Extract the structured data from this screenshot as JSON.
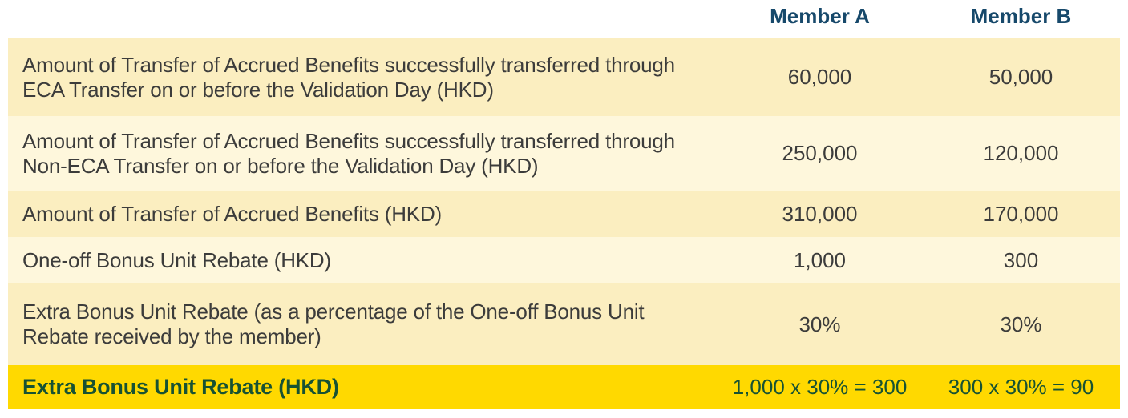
{
  "table": {
    "header": {
      "member_a": "Member A",
      "member_b": "Member B"
    },
    "rows": [
      {
        "label": "Amount of Transfer of Accrued Benefits successfully transferred through ECA Transfer on or before the Validation Day (HKD)",
        "member_a": "60,000",
        "member_b": "50,000",
        "variant": "dark"
      },
      {
        "label": "Amount of Transfer of Accrued Benefits successfully transferred through Non-ECA Transfer on or before the Validation Day (HKD)",
        "member_a": "250,000",
        "member_b": "120,000",
        "variant": "light"
      },
      {
        "label": "Amount of Transfer of Accrued Benefits (HKD)",
        "member_a": "310,000",
        "member_b": "170,000",
        "variant": "dark"
      },
      {
        "label": "One-off Bonus Unit Rebate (HKD)",
        "member_a": "1,000",
        "member_b": "300",
        "variant": "light"
      },
      {
        "label": "Extra Bonus Unit Rebate (as a percentage of the One-off Bonus Unit Rebate received by the member)",
        "member_a": "30%",
        "member_b": "30%",
        "variant": "dark"
      },
      {
        "label": "Extra Bonus Unit Rebate (HKD)",
        "member_a": "1,000 x 30% = 300",
        "member_b": "300 x 30% = 90",
        "variant": "highlight"
      }
    ],
    "colors": {
      "row_dark": "#fbeec0",
      "row_light": "#fef7dc",
      "row_highlight": "#ffd900",
      "header_text": "#17496b",
      "highlight_text": "#175233",
      "body_text": "#3c3c3b",
      "page_background": "#ffffff"
    }
  }
}
